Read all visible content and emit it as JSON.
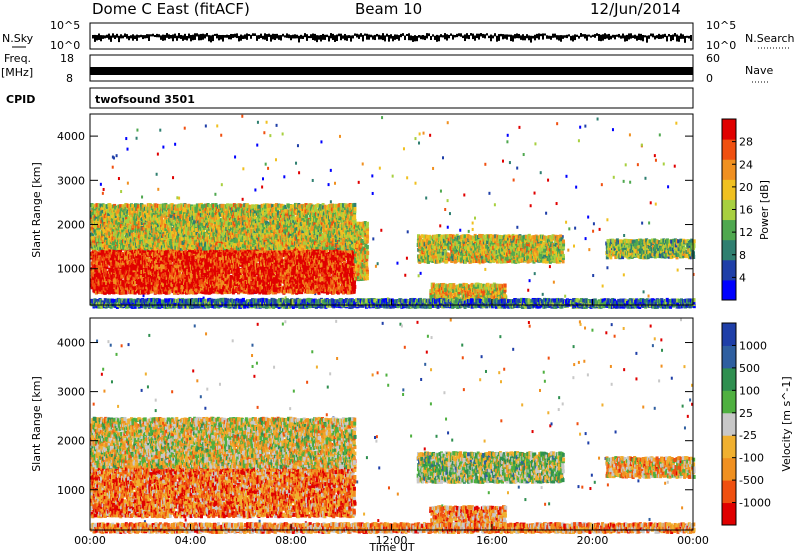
{
  "header": {
    "station": "Dome C East (fitACF)",
    "beam": "Beam 10",
    "date": "12/Jun/2014"
  },
  "strip_left": {
    "nsky_label": "N.Sky",
    "freq_label": "Freq.",
    "freq_unit": "[MHz]",
    "cpid_label": "CPID"
  },
  "strip_right": {
    "nsearch_label": "N.Search",
    "nave_label": "Nave"
  },
  "noise_axis": {
    "top": "10^5",
    "bottom": "10^0"
  },
  "freq_axis": {
    "top": "18",
    "bottom": "8"
  },
  "nave_axis": {
    "top": "60",
    "bottom": "0"
  },
  "cpid_text": "twofsound 3501",
  "colors": {
    "power": [
      "#0000ff",
      "#1f3fa8",
      "#2f7f70",
      "#4fa84f",
      "#a8d040",
      "#f0c020",
      "#f09020",
      "#f05010",
      "#e00000"
    ],
    "velocity": [
      "#e00000",
      "#f05010",
      "#f09020",
      "#f0b030",
      "#c8c8c8",
      "#4fb040",
      "#2f8f50",
      "#2f5fa0",
      "#1f3fa8"
    ],
    "background": "#ffffff"
  },
  "chart_data": [
    {
      "type": "heatmap",
      "title": "Power",
      "xlabel": "Time UT",
      "ylabel": "Slant Range [km]",
      "x_ticks": [
        "00:00",
        "04:00",
        "08:00",
        "12:00",
        "16:00",
        "20:00",
        "00:00"
      ],
      "y_ticks": [
        1000,
        2000,
        3000,
        4000
      ],
      "xlim_hours": [
        0,
        24
      ],
      "ylim_km": [
        180,
        4500
      ],
      "colorbar": {
        "label": "Power [dB]",
        "ticks": [
          4,
          8,
          12,
          16,
          20,
          24,
          28
        ],
        "range": [
          0,
          32
        ]
      },
      "regions": [
        {
          "t": [
            0.0,
            10.5
          ],
          "r": [
            500,
            1700
          ],
          "level": 0.92
        },
        {
          "t": [
            0.0,
            10.5
          ],
          "r": [
            1500,
            2500
          ],
          "level": 0.55
        },
        {
          "t": [
            10.5,
            11.0
          ],
          "r": [
            800,
            2100
          ],
          "level": 0.6
        },
        {
          "t": [
            13.0,
            18.8
          ],
          "r": [
            1200,
            1800
          ],
          "level": 0.55
        },
        {
          "t": [
            13.5,
            16.5
          ],
          "r": [
            300,
            700
          ],
          "level": 0.6
        },
        {
          "t": [
            20.5,
            24.0
          ],
          "r": [
            1300,
            1700
          ],
          "level": 0.45
        },
        {
          "t": [
            0.0,
            24.0
          ],
          "r": [
            180,
            350
          ],
          "level": 0.25
        }
      ]
    },
    {
      "type": "heatmap",
      "title": "Velocity",
      "xlabel": "Time UT",
      "ylabel": "Slant Range [km]",
      "x_ticks": [
        "00:00",
        "04:00",
        "08:00",
        "12:00",
        "16:00",
        "20:00",
        "00:00"
      ],
      "y_ticks": [
        1000,
        2000,
        3000,
        4000
      ],
      "xlim_hours": [
        0,
        24
      ],
      "ylim_km": [
        180,
        4500
      ],
      "colorbar": {
        "label": "Velocity [m s^-1]",
        "ticks": [
          "-1000",
          "-500",
          "-100",
          "-25",
          "25",
          "100",
          "500",
          "1000"
        ]
      },
      "regions": [
        {
          "t": [
            0.0,
            10.5
          ],
          "r": [
            500,
            1700
          ],
          "level": 0.25
        },
        {
          "t": [
            0.0,
            10.5
          ],
          "r": [
            1500,
            2500
          ],
          "level": 0.45
        },
        {
          "t": [
            13.0,
            18.8
          ],
          "r": [
            1200,
            1800
          ],
          "level": 0.55
        },
        {
          "t": [
            13.5,
            16.5
          ],
          "r": [
            300,
            700
          ],
          "level": 0.3
        },
        {
          "t": [
            20.5,
            24.0
          ],
          "r": [
            1300,
            1700
          ],
          "level": 0.35
        },
        {
          "t": [
            0.0,
            24.0
          ],
          "r": [
            180,
            350
          ],
          "level": 0.3
        }
      ]
    }
  ]
}
